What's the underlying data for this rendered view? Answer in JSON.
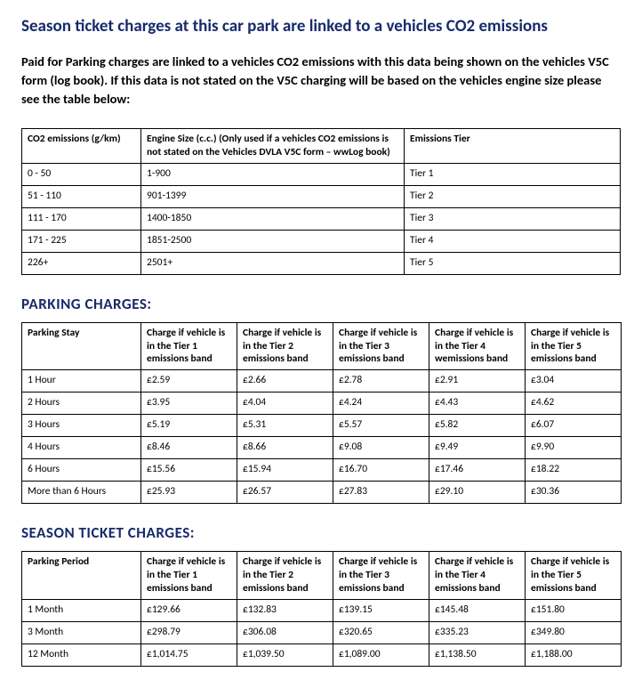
{
  "title": "Season ticket charges at this car park are linked to a vehicles CO2 emissions",
  "intro": "Paid for Parking charges are linked to a vehicles CO2 emissions with this data being shown on the vehicles V5C form (log book). If this data is not stated on the V5C charging will be based on the vehicles engine size please see the table below:",
  "emissions_table": {
    "columns": [
      "CO2 emissions (g/km)",
      "Engine Size (c.c.) (Only used if a vehicles CO2 emissions is not stated on the Vehicles DVLA V5C form – wwLog book)",
      "Emissions Tier"
    ],
    "rows": [
      [
        "0 - 50",
        "1-900",
        "Tier 1"
      ],
      [
        "51 - 110",
        "901-1399",
        "Tier 2"
      ],
      [
        "111 - 170",
        "1400-1850",
        "Tier 3"
      ],
      [
        "171 - 225",
        "1851-2500",
        "Tier 4"
      ],
      [
        "226+",
        "2501+",
        "Tier 5"
      ]
    ]
  },
  "parking_charges": {
    "heading": "PARKING CHARGES:",
    "columns": [
      "Parking Stay",
      "Charge if vehicle is in the Tier 1 emissions band",
      "Charge if vehicle is in the Tier 2 emissions band",
      "Charge if vehicle is in the Tier 3 emissions band",
      "Charge if vehicle is in the Tier 4 wemissions band",
      "Charge if vehicle is in the Tier 5 emissions band"
    ],
    "rows": [
      [
        "1 Hour",
        "£2.59",
        "£2.66",
        "£2.78",
        "£2.91",
        "£3.04"
      ],
      [
        "2 Hours",
        "£3.95",
        "£4.04",
        "£4.24",
        "£4.43",
        "£4.62"
      ],
      [
        "3 Hours",
        "£5.19",
        "£5.31",
        "£5.57",
        "£5.82",
        "£6.07"
      ],
      [
        "4 Hours",
        "£8.46",
        "£8.66",
        "£9.08",
        "£9.49",
        "£9.90"
      ],
      [
        "6 Hours",
        "£15.56",
        "£15.94",
        "£16.70",
        "£17.46",
        "£18.22"
      ],
      [
        "More than 6 Hours",
        "£25.93",
        "£26.57",
        "£27.83",
        "£29.10",
        "£30.36"
      ]
    ]
  },
  "season_charges": {
    "heading": "SEASON TICKET CHARGES:",
    "columns": [
      "Parking Period",
      "Charge if vehicle is in the Tier 1 emissions band",
      "Charge if vehicle is in the Tier 2 emissions band",
      "Charge if vehicle is in the Tier 3 emissions band",
      "Charge if vehicle is in the Tier 4 emissions band",
      "Charge if vehicle is in the Tier 5 emissions band"
    ],
    "rows": [
      [
        "1 Month",
        "£129.66",
        "£132.83",
        "£139.15",
        "£145.48",
        "£151.80"
      ],
      [
        "3 Month",
        "£298.79",
        "£306.08",
        "£320.65",
        "£335.23",
        "£349.80"
      ],
      [
        "12 Month",
        "£1,014.75",
        "£1,039.50",
        "£1,089.00",
        "£1,138.50",
        "£1,188.00"
      ]
    ]
  }
}
